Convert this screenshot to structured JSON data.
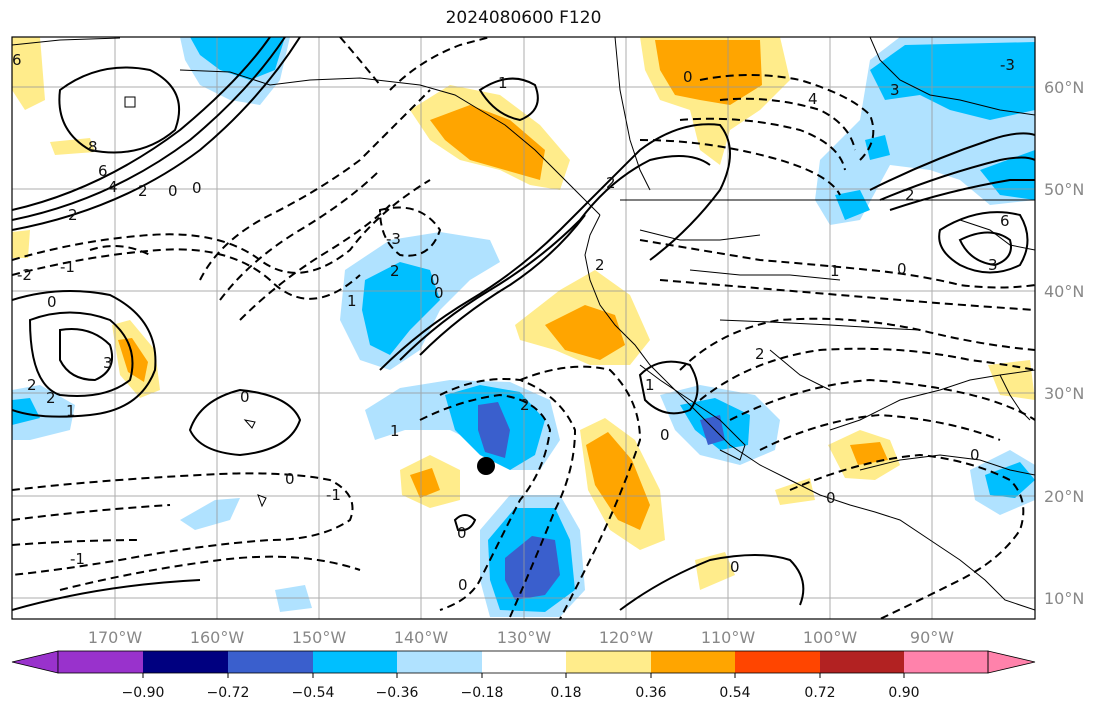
{
  "title": "2024080600 F120",
  "map": {
    "lon_labels": [
      "170°W",
      "160°W",
      "150°W",
      "140°W",
      "130°W",
      "120°W",
      "110°W",
      "100°W",
      "90°W"
    ],
    "lat_labels": [
      "60°N",
      "50°N",
      "40°N",
      "30°N",
      "20°N",
      "10°N"
    ],
    "contour_labels": [
      "-2",
      "-1",
      "0",
      "1",
      "2",
      "3",
      "6",
      "8",
      "-3"
    ],
    "marker": "storm-position-dot"
  },
  "colorbar": {
    "tick_labels": [
      "−0.90",
      "−0.72",
      "−0.54",
      "−0.36",
      "−0.18",
      "0.18",
      "0.36",
      "0.54",
      "0.72",
      "0.90"
    ],
    "colors": [
      "#9932cc",
      "#000080",
      "#3a5fcd",
      "#00bfff",
      "#b0e2ff",
      "#ffffff",
      "#ffec8b",
      "#ffa500",
      "#ff4500",
      "#b22222",
      "#ff82ab"
    ]
  }
}
